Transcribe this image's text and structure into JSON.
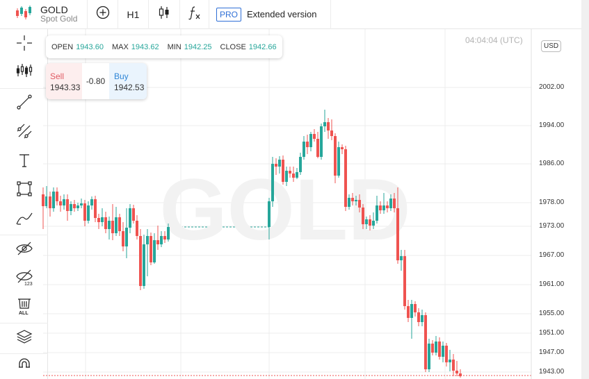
{
  "header": {
    "symbol": "GOLD",
    "description": "Spot Gold",
    "timeframe": "H1",
    "pro_badge": "PRO",
    "extended_label": "Extended version"
  },
  "legend": {
    "open_label": "OPEN",
    "open_value": "1943.60",
    "max_label": "MAX",
    "max_value": "1943.62",
    "min_label": "MIN",
    "min_value": "1942.25",
    "close_label": "CLOSE",
    "close_value": "1942.66"
  },
  "trade": {
    "sell_label": "Sell",
    "sell_price": "1943.33",
    "spread": "-0.80",
    "buy_label": "Buy",
    "buy_price": "1942.53"
  },
  "clock": "04:04:04 (UTC)",
  "currency": "USD",
  "watermark": "GOLD",
  "axis": {
    "price_labels": [
      "2002.00",
      "1994.00",
      "1986.00",
      "1978.00",
      "1973.00",
      "1967.00",
      "1961.00",
      "1955.00",
      "1951.00",
      "1947.00",
      "1943.00"
    ]
  },
  "colors": {
    "up": "#26a69a",
    "down": "#ef5350",
    "accent": "#2f6fd6"
  },
  "left_tools": [
    "crosshair-icon",
    "indicators-icon",
    "trendline-icon",
    "fib-tools-icon",
    "text-icon",
    "rectangle-icon",
    "brush-icon",
    "hide-drawings-icon",
    "hide-indicators-icon",
    "delete-all-icon",
    "layers-icon",
    "magnet-icon"
  ]
}
